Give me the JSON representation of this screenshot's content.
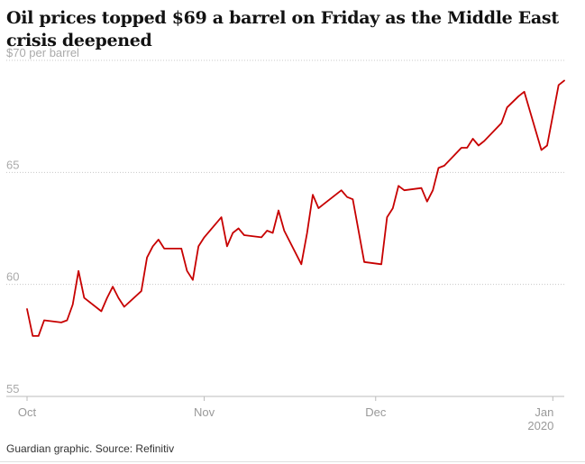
{
  "title": "Oil prices topped $69 a barrel on Friday as the Middle East crisis deepened",
  "source": "Guardian graphic. Source: Refinitiv",
  "chart_data": {
    "type": "line",
    "title": "Oil prices topped $69 a barrel on Friday as the Middle East crisis deepened",
    "ylim": [
      55,
      70
    ],
    "y_unit_label": "$70 per barrel",
    "y_ticks": [
      {
        "value": 70,
        "label": "$70 per barrel"
      },
      {
        "value": 65,
        "label": "65"
      },
      {
        "value": 60,
        "label": "60"
      },
      {
        "value": 55,
        "label": "55"
      }
    ],
    "x_ticks": [
      {
        "date": "2019-10-01",
        "label": "Oct",
        "sublabel": ""
      },
      {
        "date": "2019-11-01",
        "label": "Nov",
        "sublabel": ""
      },
      {
        "date": "2019-12-01",
        "label": "Dec",
        "sublabel": ""
      },
      {
        "date": "2020-01-01",
        "label": "Jan",
        "sublabel": "2020"
      }
    ],
    "xlim": [
      "2019-10-01",
      "2020-01-03"
    ],
    "grid": true,
    "color": "#c70000",
    "series": [
      {
        "x": [
          "2019-10-01",
          "2019-10-02",
          "2019-10-03",
          "2019-10-04",
          "2019-10-07",
          "2019-10-08",
          "2019-10-09",
          "2019-10-10",
          "2019-10-11",
          "2019-10-14",
          "2019-10-15",
          "2019-10-16",
          "2019-10-17",
          "2019-10-18",
          "2019-10-21",
          "2019-10-22",
          "2019-10-23",
          "2019-10-24",
          "2019-10-25",
          "2019-10-28",
          "2019-10-29",
          "2019-10-30",
          "2019-10-31",
          "2019-11-01",
          "2019-11-04",
          "2019-11-05",
          "2019-11-06",
          "2019-11-07",
          "2019-11-08",
          "2019-11-11",
          "2019-11-12",
          "2019-11-13",
          "2019-11-14",
          "2019-11-15",
          "2019-11-18",
          "2019-11-19",
          "2019-11-20",
          "2019-11-21",
          "2019-11-22",
          "2019-11-25",
          "2019-11-26",
          "2019-11-27",
          "2019-11-29",
          "2019-12-02",
          "2019-12-03",
          "2019-12-04",
          "2019-12-05",
          "2019-12-06",
          "2019-12-09",
          "2019-12-10",
          "2019-12-11",
          "2019-12-12",
          "2019-12-13",
          "2019-12-16",
          "2019-12-17",
          "2019-12-18",
          "2019-12-19",
          "2019-12-20",
          "2019-12-23",
          "2019-12-24",
          "2019-12-26",
          "2019-12-27",
          "2019-12-30",
          "2019-12-31",
          "2020-01-02",
          "2020-01-03"
        ],
        "values": [
          58.9,
          57.7,
          57.7,
          58.4,
          58.3,
          58.4,
          59.1,
          60.6,
          59.4,
          58.8,
          59.4,
          59.9,
          59.4,
          59.0,
          59.7,
          61.2,
          61.7,
          62.0,
          61.6,
          61.6,
          60.6,
          60.2,
          61.7,
          62.1,
          63.0,
          61.7,
          62.3,
          62.5,
          62.2,
          62.1,
          62.4,
          62.3,
          63.3,
          62.4,
          60.9,
          62.3,
          64.0,
          63.4,
          63.6,
          64.2,
          63.9,
          63.8,
          61.0,
          60.9,
          63.0,
          63.4,
          64.4,
          64.2,
          64.3,
          63.7,
          64.2,
          65.2,
          65.3,
          66.1,
          66.1,
          66.5,
          66.2,
          66.4,
          67.2,
          67.9,
          68.4,
          68.6,
          66.0,
          66.2,
          68.9,
          69.1
        ]
      }
    ]
  }
}
